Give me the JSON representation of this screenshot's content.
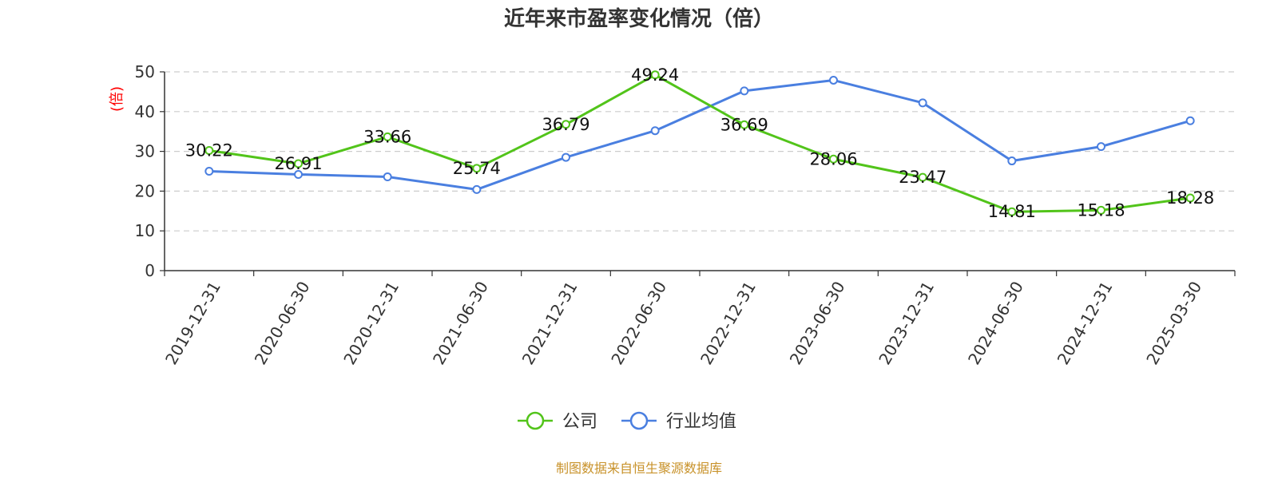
{
  "colors": {
    "company": "#52c41a",
    "industry": "#4a7fe0",
    "grid": "#cccccc",
    "axis": "#333333",
    "unit": "#ff0000",
    "source": "#c8922a"
  },
  "chart_data": {
    "type": "line",
    "title": "近年来市盈率变化情况（倍）",
    "ylabel": "(倍)",
    "xlabel": "",
    "ylim": [
      0,
      50
    ],
    "yticks": [
      0,
      10,
      20,
      30,
      40,
      50
    ],
    "grid": true,
    "legend_position": "bottom-center",
    "categories": [
      "2019-12-31",
      "2020-06-30",
      "2020-12-31",
      "2021-06-30",
      "2021-12-31",
      "2022-06-30",
      "2022-12-31",
      "2023-06-30",
      "2023-12-31",
      "2024-06-30",
      "2024-12-31",
      "2025-03-30"
    ],
    "series": [
      {
        "name": "公司",
        "values": [
          30.22,
          26.91,
          33.66,
          25.74,
          36.79,
          49.24,
          36.69,
          28.06,
          23.47,
          14.81,
          15.18,
          18.28
        ],
        "color_key": "company",
        "labels": true
      },
      {
        "name": "行业均值",
        "values": [
          25.0,
          24.2,
          23.6,
          20.4,
          28.5,
          35.2,
          45.2,
          47.9,
          42.2,
          27.6,
          31.2,
          37.7
        ],
        "color_key": "industry",
        "labels": false
      }
    ]
  },
  "footer": {
    "source": "制图数据来自恒生聚源数据库"
  }
}
